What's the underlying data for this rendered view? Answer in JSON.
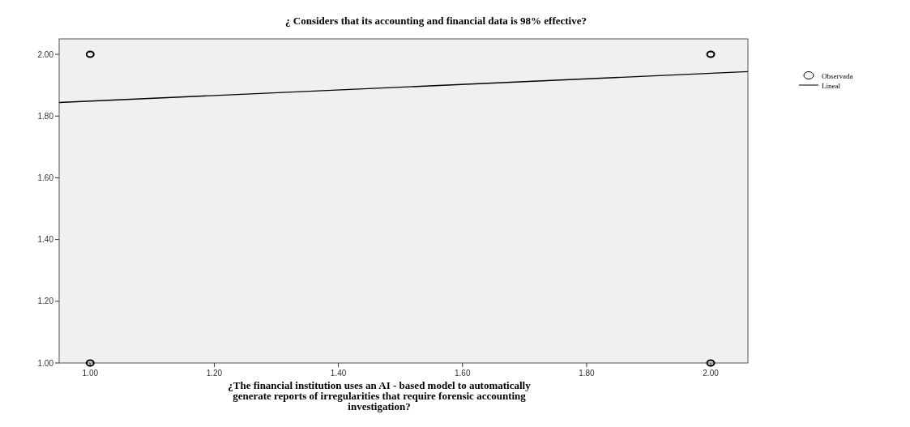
{
  "chart_data": {
    "type": "scatter",
    "title": "¿ Considers that its accounting and financial data is 98% effective?",
    "xlabel": "¿The financial institution uses an AI - based model to automatically generate reports of irregularities that require forensic accounting investigation?",
    "xlim": [
      0.95,
      2.06
    ],
    "ylim": [
      1.0,
      2.05
    ],
    "xticks": [
      {
        "value": 1,
        "label": "1.00"
      },
      {
        "value": 1.2,
        "label": "1.20"
      },
      {
        "value": 1.4,
        "label": "1.40"
      },
      {
        "value": 1.6,
        "label": "1.60"
      },
      {
        "value": 1.8,
        "label": "1.80"
      },
      {
        "value": 2,
        "label": "2.00"
      }
    ],
    "yticks": [
      {
        "value": 1,
        "label": "1.00"
      },
      {
        "value": 1.2,
        "label": "1.20"
      },
      {
        "value": 1.4,
        "label": "1.40"
      },
      {
        "value": 1.6,
        "label": "1.60"
      },
      {
        "value": 1.8,
        "label": "1.80"
      },
      {
        "value": 2,
        "label": "2.00"
      }
    ],
    "legend": "right",
    "grid": false,
    "series": [
      {
        "name": "Observada",
        "marker": "circle",
        "color": "#000000",
        "x": [
          1,
          2,
          1,
          2
        ],
        "values": [
          2,
          2,
          1,
          1
        ]
      },
      {
        "name": "Lineal",
        "type": "line",
        "marker": "none",
        "color": "#000000",
        "x": [
          0.95,
          2.06
        ],
        "values": [
          1.844,
          1.944
        ]
      }
    ]
  }
}
